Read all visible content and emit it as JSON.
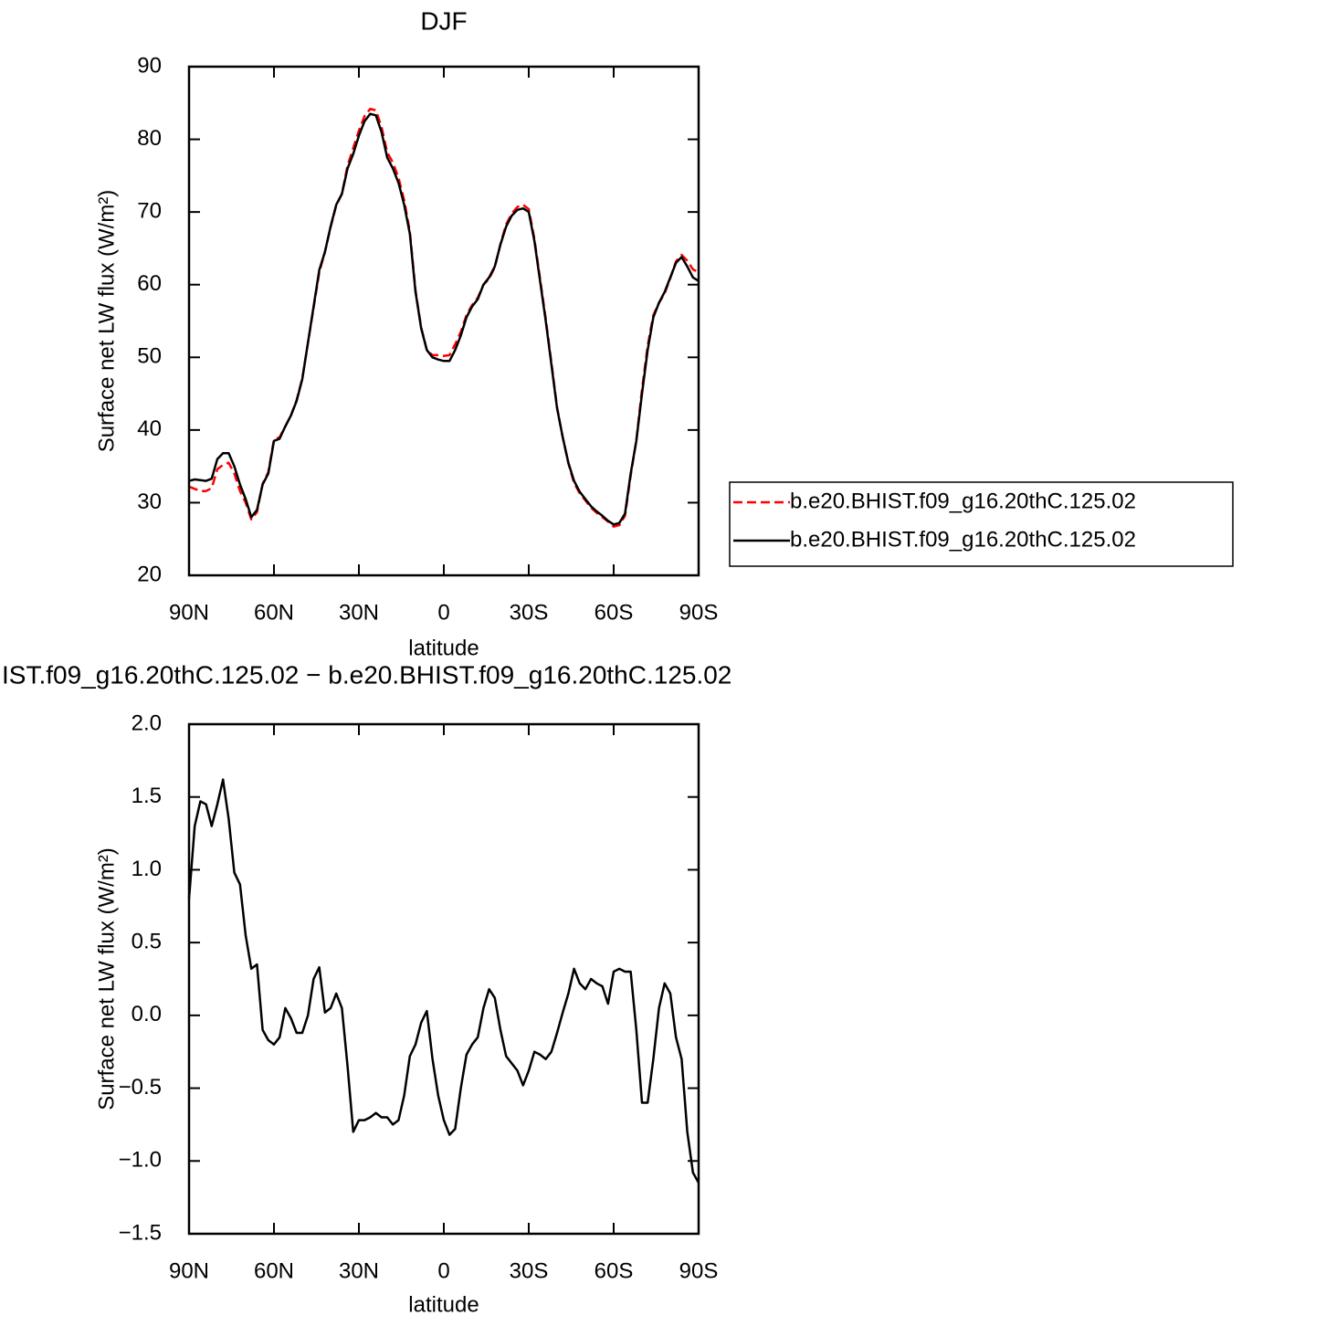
{
  "chart_data": [
    {
      "type": "line",
      "title": "DJF",
      "x_label": "latitude",
      "y_label": "Surface net LW flux (W/m²)",
      "x": [
        90,
        88,
        86,
        84,
        82,
        80,
        78,
        76,
        74,
        72,
        70,
        68,
        66,
        64,
        62,
        60,
        58,
        56,
        54,
        52,
        50,
        48,
        46,
        44,
        42,
        40,
        38,
        36,
        34,
        32,
        30,
        28,
        26,
        24,
        22,
        20,
        18,
        16,
        14,
        12,
        10,
        8,
        6,
        4,
        2,
        0,
        -2,
        -4,
        -6,
        -8,
        -10,
        -12,
        -14,
        -16,
        -18,
        -20,
        -22,
        -24,
        -26,
        -28,
        -30,
        -32,
        -34,
        -36,
        -38,
        -40,
        -42,
        -44,
        -46,
        -48,
        -50,
        -52,
        -54,
        -56,
        -58,
        -60,
        -62,
        -64,
        -66,
        -68,
        -70,
        -72,
        -74,
        -76,
        -78,
        -80,
        -82,
        -84,
        -86,
        -88,
        -90
      ],
      "series": [
        {
          "name": "b.e20.BHIST.f09_g16.20thC.125.02",
          "color": "#ff0000",
          "dashed": true,
          "values": [
            32.2,
            31.9,
            31.6,
            31.6,
            32.0,
            34.6,
            35.2,
            35.5,
            34.0,
            31.6,
            30.0,
            27.7,
            28.7,
            32.6,
            34.2,
            38.7,
            39.0,
            40.5,
            42.0,
            44.1,
            47.1,
            52.0,
            56.8,
            61.7,
            64.5,
            67.9,
            70.9,
            72.5,
            76.4,
            78.8,
            81.2,
            83.2,
            84.2,
            84.0,
            81.7,
            78.2,
            76.8,
            74.7,
            71.6,
            67.3,
            59.2,
            54.1,
            51.0,
            50.3,
            50.3,
            50.2,
            50.3,
            51.8,
            53.5,
            55.8,
            57.2,
            58.2,
            60.0,
            60.8,
            62.4,
            65.6,
            68.3,
            69.8,
            70.7,
            71.0,
            70.4,
            66.3,
            60.8,
            55.3,
            49.3,
            43.1,
            39.0,
            35.4,
            32.7,
            31.3,
            30.3,
            29.3,
            28.6,
            28.0,
            27.4,
            26.7,
            26.9,
            28.2,
            33.7,
            38.6,
            45.6,
            51.6,
            55.8,
            57.5,
            58.8,
            60.9,
            63.2,
            64.1,
            63.3,
            62.1,
            61.7
          ]
        },
        {
          "name": "b.e20.BHIST.f09_g16.20thC.125.02",
          "color": "#000000",
          "dashed": false,
          "values": [
            33,
            33.2,
            33.1,
            33,
            33.3,
            36,
            36.8,
            36.8,
            35,
            32.5,
            30.5,
            28,
            29,
            32.5,
            34,
            38.5,
            38.8,
            40.5,
            42,
            44,
            47,
            52,
            57,
            62,
            64.5,
            68,
            71,
            72.5,
            76,
            78,
            80.5,
            82.5,
            83.5,
            83.3,
            81,
            77.5,
            76,
            74,
            71,
            67,
            59,
            54,
            51,
            50,
            49.7,
            49.5,
            49.5,
            51,
            53,
            55.5,
            57,
            58,
            60,
            61,
            62.5,
            65.5,
            68,
            69.5,
            70.3,
            70.5,
            70,
            66,
            60.5,
            55,
            49,
            43,
            39,
            35.5,
            33,
            31.5,
            30.5,
            29.5,
            28.8,
            28.2,
            27.5,
            27,
            27.2,
            28.5,
            34,
            38.5,
            45,
            51,
            55.5,
            57.5,
            59,
            61,
            63,
            63.8,
            62.5,
            61,
            60.5
          ]
        }
      ],
      "xlim": [
        90,
        -90
      ],
      "xticks": [
        {
          "value": 90,
          "label": "90N"
        },
        {
          "value": 60,
          "label": "60N"
        },
        {
          "value": 30,
          "label": "30N"
        },
        0,
        {
          "value": -30,
          "label": "30S"
        },
        {
          "value": -60,
          "label": "60S"
        },
        {
          "value": -90,
          "label": "90S"
        }
      ],
      "ylim": [
        20,
        90
      ],
      "yticks": [
        20,
        30,
        40,
        50,
        60,
        70,
        80,
        90
      ],
      "legend": "right"
    },
    {
      "type": "line",
      "title": "IST.f09_g16.20thC.125.02 − b.e20.BHIST.f09_g16.20thC.125.02",
      "x_label": "latitude",
      "y_label": "Surface net LW flux (W/m²)",
      "x": [
        90,
        88,
        86,
        84,
        82,
        80,
        78,
        76,
        74,
        72,
        70,
        68,
        66,
        64,
        62,
        60,
        58,
        56,
        54,
        52,
        50,
        48,
        46,
        44,
        42,
        40,
        38,
        36,
        34,
        32,
        30,
        28,
        26,
        24,
        22,
        20,
        18,
        16,
        14,
        12,
        10,
        8,
        6,
        4,
        2,
        0,
        -2,
        -4,
        -6,
        -8,
        -10,
        -12,
        -14,
        -16,
        -18,
        -20,
        -22,
        -24,
        -26,
        -28,
        -30,
        -32,
        -34,
        -36,
        -38,
        -40,
        -42,
        -44,
        -46,
        -48,
        -50,
        -52,
        -54,
        -56,
        -58,
        -60,
        -62,
        -64,
        -66,
        -68,
        -70,
        -72,
        -74,
        -76,
        -78,
        -80,
        -82,
        -84,
        -86,
        -88,
        -90
      ],
      "series": [
        {
          "color": "#000000",
          "dashed": false,
          "values": [
            0.8,
            1.3,
            1.47,
            1.45,
            1.3,
            1.45,
            1.62,
            1.35,
            0.98,
            0.9,
            0.55,
            0.32,
            0.35,
            -0.1,
            -0.17,
            -0.2,
            -0.15,
            0.05,
            -0.02,
            -0.12,
            -0.12,
            0.0,
            0.25,
            0.33,
            0.02,
            0.05,
            0.15,
            0.05,
            -0.35,
            -0.8,
            -0.72,
            -0.72,
            -0.7,
            -0.67,
            -0.7,
            -0.7,
            -0.75,
            -0.72,
            -0.55,
            -0.28,
            -0.2,
            -0.05,
            0.03,
            -0.3,
            -0.55,
            -0.72,
            -0.82,
            -0.78,
            -0.5,
            -0.27,
            -0.2,
            -0.15,
            0.05,
            0.18,
            0.12,
            -0.1,
            -0.28,
            -0.33,
            -0.38,
            -0.48,
            -0.38,
            -0.25,
            -0.27,
            -0.3,
            -0.25,
            -0.12,
            0.02,
            0.15,
            0.32,
            0.22,
            0.18,
            0.25,
            0.22,
            0.2,
            0.08,
            0.3,
            0.32,
            0.3,
            0.3,
            -0.1,
            -0.6,
            -0.6,
            -0.3,
            0.05,
            0.22,
            0.15,
            -0.15,
            -0.3,
            -0.8,
            -1.08,
            -1.15
          ]
        }
      ],
      "xlim": [
        90,
        -90
      ],
      "xticks": [
        {
          "value": 90,
          "label": "90N"
        },
        {
          "value": 60,
          "label": "60N"
        },
        {
          "value": 30,
          "label": "30N"
        },
        0,
        {
          "value": -30,
          "label": "30S"
        },
        {
          "value": -60,
          "label": "60S"
        },
        {
          "value": -90,
          "label": "90S"
        }
      ],
      "ylim": [
        -1.5,
        2.0
      ],
      "yticks": [
        {
          "value": -1.5,
          "label": "−1.5"
        },
        {
          "value": -1.0,
          "label": "−1.0"
        },
        {
          "value": -0.5,
          "label": "−0.5"
        },
        {
          "value": 0.0,
          "label": "0.0"
        },
        {
          "value": 0.5,
          "label": "0.5"
        },
        {
          "value": 1.0,
          "label": "1.0"
        },
        {
          "value": 1.5,
          "label": "1.5"
        },
        {
          "value": 2.0,
          "label": "2.0"
        }
      ]
    }
  ]
}
